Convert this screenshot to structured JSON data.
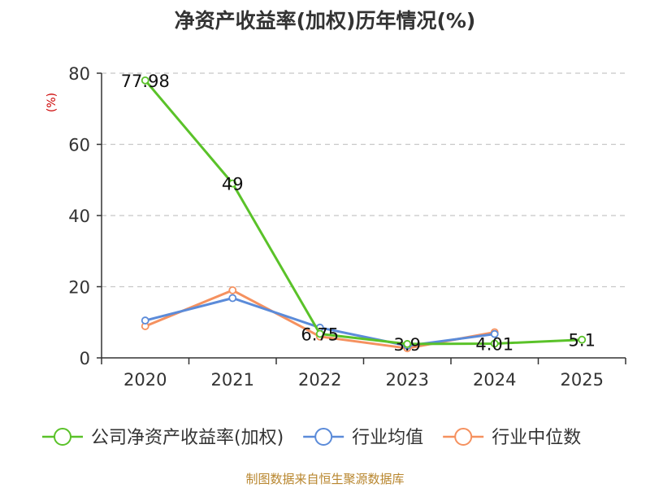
{
  "chart_data": {
    "type": "line",
    "title": "净资产收益率(加权)历年情况(%)",
    "ylabel": "(%)",
    "xlabel": "",
    "categories": [
      "2020",
      "2021",
      "2022",
      "2023",
      "2024",
      "2025"
    ],
    "ylim": [
      0,
      80
    ],
    "yticks": [
      0,
      20,
      40,
      60,
      80
    ],
    "grid": true,
    "legend_position": "bottom",
    "series": [
      {
        "name": "公司净资产收益率(加权)",
        "color": "#5ac229",
        "values": [
          77.98,
          49,
          6.75,
          3.9,
          4.01,
          5.1
        ],
        "labels": [
          "77.98",
          "49",
          "6.75",
          "3.9",
          "4.01",
          "5.1"
        ]
      },
      {
        "name": "行业均值",
        "color": "#5b8bd9",
        "values": [
          10.5,
          16.8,
          8.5,
          3.4,
          6.7,
          null
        ]
      },
      {
        "name": "行业中位数",
        "color": "#f5915f",
        "values": [
          8.9,
          19.0,
          6.0,
          2.7,
          7.2,
          null
        ]
      }
    ],
    "source": "制图数据来自恒生聚源数据库"
  }
}
